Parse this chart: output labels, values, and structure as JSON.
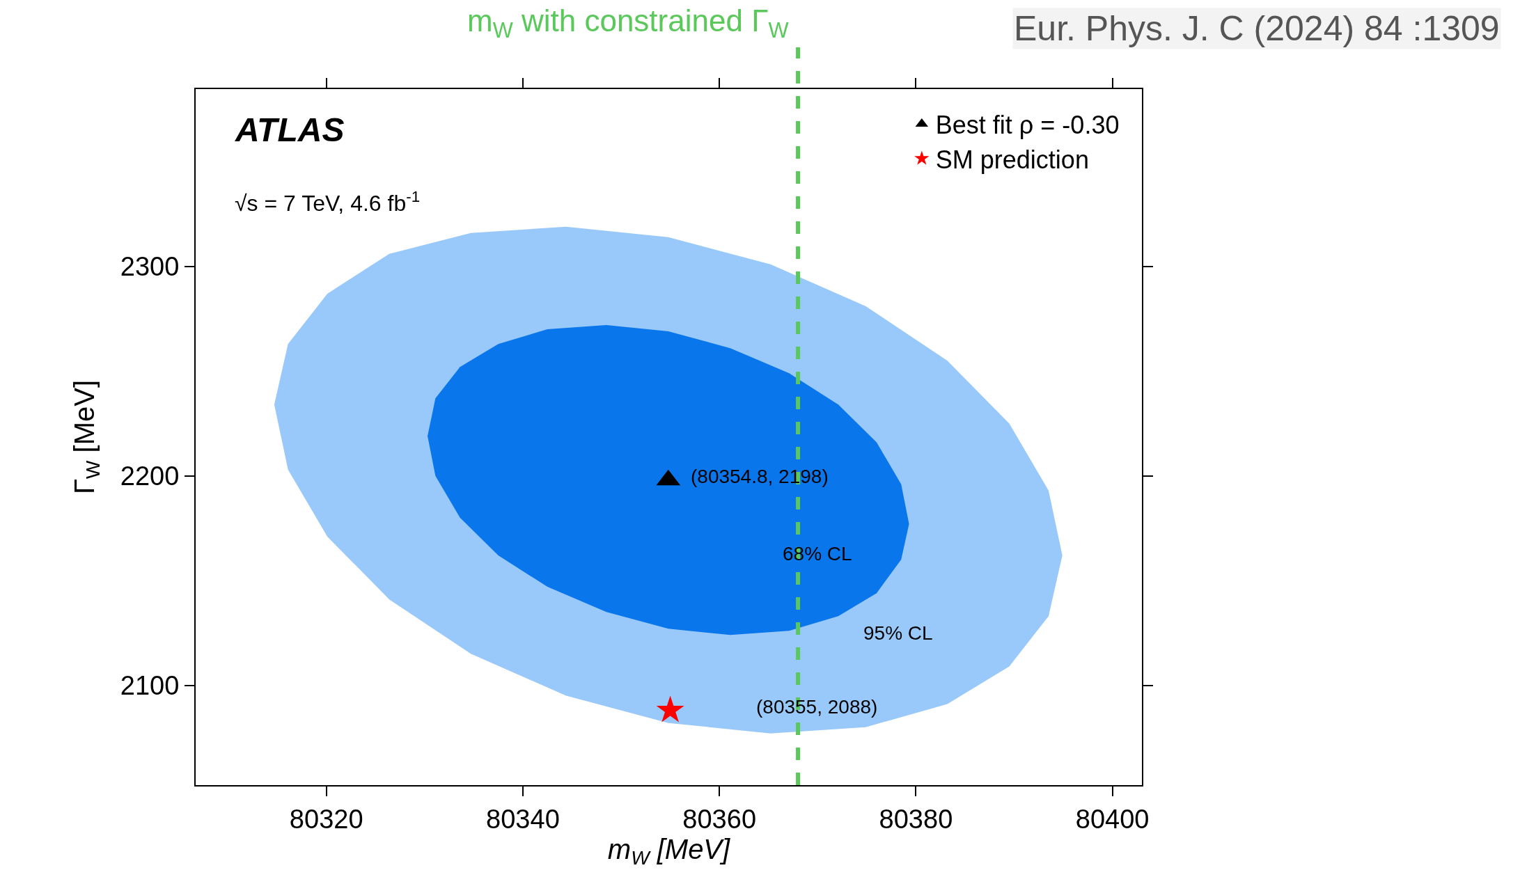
{
  "chart_data": {
    "type": "area",
    "xlabel": "m$_{W}$ [MeV]",
    "ylabel": "Γ$_{W}$ [MeV]",
    "xlim": [
      80306.7,
      80403
    ],
    "ylim": [
      2052.3,
      2384.7
    ],
    "xticks": [
      80320,
      80340,
      80360,
      80380,
      80400
    ],
    "yticks": [
      2100,
      2200,
      2300
    ],
    "legend": "top right",
    "series": [
      {
        "color": "#99c9fb",
        "x": [
          80394.9,
          80393.5,
          80389.5,
          80383.2,
          80374.9,
          80365.2,
          80354.8,
          80344.4,
          80334.7,
          80326.4,
          80320.1,
          80316.1,
          80314.7,
          80316.1,
          80320.1,
          80326.4,
          80334.7,
          80344.4,
          80354.8,
          80365.2,
          80374.9,
          80383.2,
          80389.5,
          80393.5,
          80394.9
        ],
        "values": [
          2162,
          2193,
          2225,
          2255,
          2281,
          2301,
          2314,
          2319,
          2316,
          2306,
          2287,
          2263,
          2234,
          2203,
          2171,
          2141,
          2115,
          2095,
          2082,
          2077,
          2080,
          2091,
          2109,
          2133,
          2162
        ]
      },
      {
        "color": "#0a76ec",
        "x": [
          80379.3,
          80378.5,
          80376.0,
          80372.1,
          80367.1,
          80361.1,
          80354.8,
          80348.5,
          80342.5,
          80337.5,
          80333.6,
          80331.1,
          80330.3,
          80331.1,
          80333.6,
          80337.5,
          80342.5,
          80348.5,
          80354.8,
          80361.1,
          80367.1,
          80372.1,
          80376.0,
          80378.5,
          80379.3
        ],
        "values": [
          2177,
          2196,
          2216,
          2234,
          2249,
          2261,
          2269,
          2272,
          2270,
          2263,
          2252,
          2237,
          2219,
          2200,
          2180,
          2162,
          2147,
          2135,
          2127,
          2124,
          2126,
          2133,
          2144,
          2160,
          2177
        ]
      },
      {
        "type": "scatter",
        "name": "Best fit ρ = -0.30",
        "color": "#000000",
        "marker": "triangle",
        "x": [
          80354.8
        ],
        "values": [
          2198
        ]
      },
      {
        "type": "scatter",
        "name": "SM prediction",
        "color": "#ff0000",
        "marker": "star",
        "x": [
          80355
        ],
        "values": [
          2088
        ]
      }
    ],
    "ref_lines": [
      {
        "axis": "x",
        "value": 80368,
        "label": "m$_{W}$ with constrained Γ$_{W}$",
        "color": "#5ac85a",
        "line_style": "dashed"
      }
    ],
    "annotations": [
      "ATLAS",
      "√s = 7 TeV, 4.6 fb$^{-1}$",
      "Eur. Phys. J. C (2024) 84 :1309",
      "(80354.8, 2198)",
      "(80355, 2088)",
      "68% CL",
      "95% CL"
    ]
  }
}
